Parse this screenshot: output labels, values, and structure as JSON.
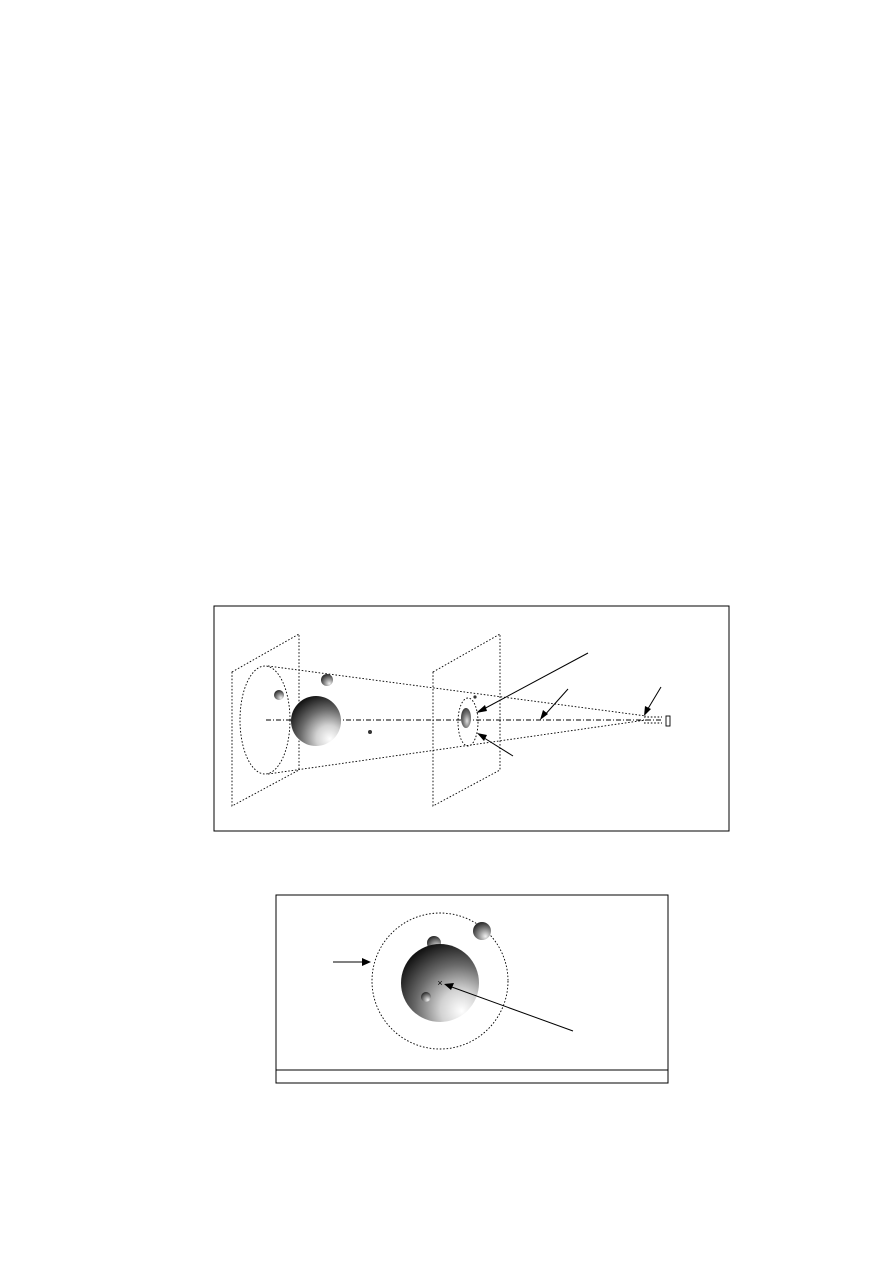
{
  "figure_top": {
    "objects": [
      "large-sphere",
      "small-sphere-top",
      "small-sphere-left",
      "tiny-sphere"
    ],
    "projection_view": "3d-projection"
  },
  "figure_bottom": {
    "objects": [
      "large-sphere",
      "small-sphere-upper-left",
      "small-sphere-upper-right",
      "small-sphere-lower-left"
    ],
    "center_mark": "×"
  },
  "colors": {
    "sphere_light": "#ffffff",
    "sphere_dark": "#1a1a1a",
    "line": "#000000"
  }
}
